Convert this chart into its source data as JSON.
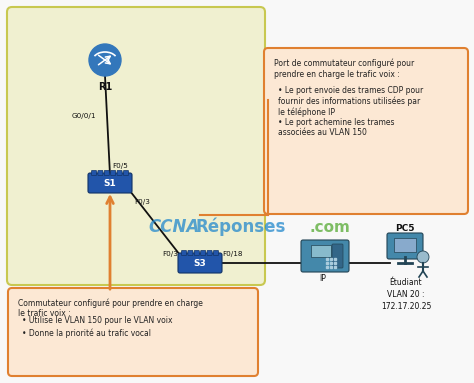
{
  "bg_color": "#f8f8f8",
  "zone_color": "#f0f0d0",
  "zone_border": "#c8c850",
  "orange_box_color": "#fce8d4",
  "orange_border": "#e08030",
  "text_color": "#222222",
  "label_color": "#111111",
  "ccna_blue": "#2288cc",
  "ccna_green": "#55aa33",
  "router_color": "#3377bb",
  "switch_color": "#2255aa",
  "phone_color": "#4488aa",
  "pc_color": "#4488aa",
  "line_color": "#111111",
  "right_box_title": "Port de commutateur configuré pour\nprendre en charge le trafic voix :",
  "right_box_bullet1": "Le port envoie des trames CDP pour\nfournir des informations utilisées par\nle téléphone IP",
  "right_box_bullet2": "Le port achemine les trames\nassociées au VLAN 150",
  "bottom_box_title": "Commutateur configuré pour prendre en charge\nle trafic voix :",
  "bottom_box_bullet1": "Utilise le VLAN 150 pour le VLAN voix",
  "bottom_box_bullet2": "Donne la priorité au trafic vocal",
  "r1_label": "R1",
  "s1_label": "S1",
  "s3_label": "S3",
  "ip_label": "IP",
  "pc_label": "PC5",
  "student_label": "Étudiant\nVLAN 20 :\n172.17.20.25",
  "g001_label": "G0/0/1",
  "f05_label": "F0/5",
  "f03_s1_label": "F0/3",
  "f03_s3_label": "F0/3",
  "f018_label": "F0/18",
  "ccna_text1": "CCNA",
  "ccna_text2": "Réponses",
  "ccna_com": ".com",
  "fig_w": 4.74,
  "fig_h": 3.83,
  "dpi": 100
}
